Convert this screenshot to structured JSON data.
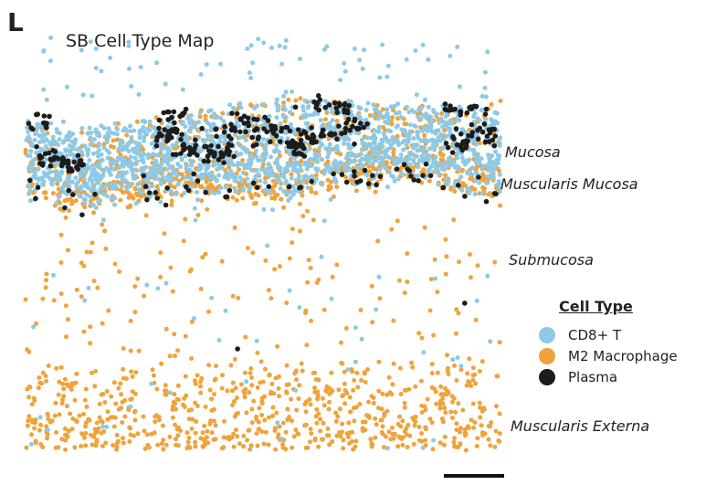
{
  "panel_letter": "L",
  "chart_data": {
    "type": "scatter",
    "title": "SB Cell Type Map",
    "xlabel": "",
    "ylabel": "",
    "region_labels": [
      "Mucosa",
      "Muscularis Mucosa",
      "Submucosa",
      "Muscularis Externa"
    ],
    "legend": {
      "title": "Cell Type",
      "placement": "right",
      "entries": [
        "CD8+ T",
        "M2 Macrophage",
        "Plasma"
      ]
    },
    "colors": {
      "CD8+ T": "#8ec9e6",
      "M2 Macrophage": "#eea33c",
      "Plasma": "#1c1c1c"
    },
    "series": [
      {
        "name": "CD8+ T",
        "description": "densest in the mucosa band, sparse in submucosa and muscularis externa",
        "region_counts": {
          "mucosa": 1400,
          "muscularis_mucosa": 220,
          "submucosa": 30,
          "muscularis_externa": 18
        }
      },
      {
        "name": "M2 Macrophage",
        "description": "throughout mucosa, muscularis mucosa, scattered in submucosa, dense in muscularis externa",
        "region_counts": {
          "mucosa": 520,
          "muscularis_mucosa": 420,
          "submucosa": 140,
          "muscularis_externa": 700
        }
      },
      {
        "name": "Plasma",
        "description": "clusters along upper mucosa and within mucosa, a few at muscularis mucosa",
        "region_counts": {
          "mucosa": 330,
          "muscularis_mucosa": 60,
          "submucosa": 2,
          "muscularis_externa": 0
        }
      }
    ],
    "scale_bar": true
  }
}
